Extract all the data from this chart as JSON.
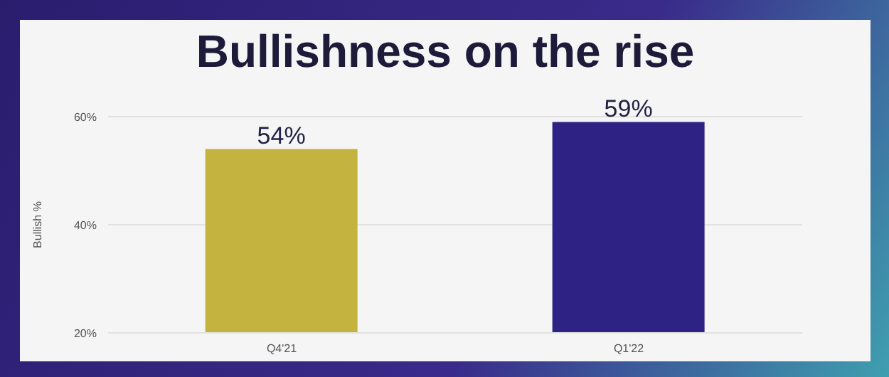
{
  "chart_data": {
    "type": "bar",
    "title": "Bullishness on the rise",
    "ylabel": "Bullish %",
    "categories": [
      "Q4'21",
      "Q1'22"
    ],
    "values": [
      54,
      59
    ],
    "colors": [
      "#c4b33e",
      "#2e2384"
    ],
    "value_labels": [
      "54%",
      "59%"
    ],
    "ylim": [
      20,
      60
    ],
    "yticks": [
      {
        "value": 20,
        "label": "20%"
      },
      {
        "value": 40,
        "label": "40%"
      },
      {
        "value": 60,
        "label": "60%"
      }
    ],
    "grid": "y"
  }
}
